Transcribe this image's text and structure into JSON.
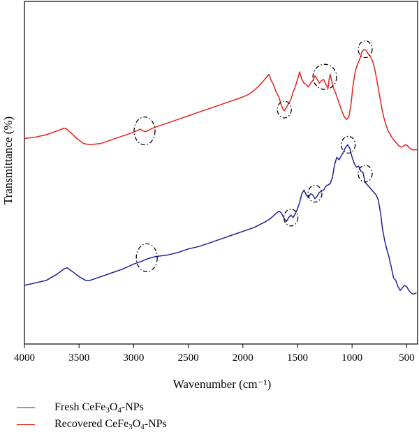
{
  "chart_data": {
    "type": "line",
    "xlabel": "Wavenumber (cm⁻¹)",
    "ylabel": "Transmittance (%)",
    "xlim": [
      4000,
      400
    ],
    "x_reversed": true,
    "ylim": [
      0,
      100
    ],
    "x_ticks": [
      "4000",
      "3500",
      "3000",
      "2500",
      "2000",
      "1500",
      "1000",
      "500"
    ],
    "y_ticks_shown": false,
    "grid": false,
    "legend_position": "bottom-left, below plot",
    "series": [
      {
        "name_parts": {
          "prefix": "Fresh CeFe",
          "sub1": "3",
          "mid": "O",
          "sub2": "4",
          "suffix": "-NPs"
        },
        "color": "#1f1f9e",
        "points": [
          [
            4000,
            10
          ],
          [
            3800,
            12
          ],
          [
            3700,
            14.5
          ],
          [
            3640,
            16.5
          ],
          [
            3610,
            17
          ],
          [
            3560,
            15.5
          ],
          [
            3500,
            13.5
          ],
          [
            3440,
            12
          ],
          [
            3400,
            12
          ],
          [
            3300,
            13.5
          ],
          [
            3200,
            15
          ],
          [
            3100,
            16.5
          ],
          [
            3000,
            18.5
          ],
          [
            2920,
            19.7
          ],
          [
            2880,
            20.5
          ],
          [
            2840,
            21
          ],
          [
            2800,
            21.5
          ],
          [
            2700,
            22
          ],
          [
            2600,
            23
          ],
          [
            2500,
            24.5
          ],
          [
            2400,
            25.5
          ],
          [
            2300,
            27
          ],
          [
            2200,
            28.5
          ],
          [
            2100,
            30
          ],
          [
            2000,
            31.5
          ],
          [
            1900,
            33
          ],
          [
            1800,
            35.2
          ],
          [
            1750,
            36.5
          ],
          [
            1700,
            38.5
          ],
          [
            1670,
            39.5
          ],
          [
            1650,
            39
          ],
          [
            1620,
            36.5
          ],
          [
            1600,
            35.5
          ],
          [
            1580,
            37
          ],
          [
            1560,
            38
          ],
          [
            1540,
            37
          ],
          [
            1520,
            38.5
          ],
          [
            1500,
            40.5
          ],
          [
            1480,
            43
          ],
          [
            1460,
            46.5
          ],
          [
            1440,
            48
          ],
          [
            1420,
            46
          ],
          [
            1400,
            45
          ],
          [
            1380,
            46.5
          ],
          [
            1360,
            46
          ],
          [
            1340,
            44.5
          ],
          [
            1320,
            45.5
          ],
          [
            1300,
            47
          ],
          [
            1280,
            47.5
          ],
          [
            1260,
            48
          ],
          [
            1240,
            49.5
          ],
          [
            1200,
            50.5
          ],
          [
            1180,
            53
          ],
          [
            1160,
            58
          ],
          [
            1140,
            61
          ],
          [
            1120,
            60
          ],
          [
            1100,
            61.5
          ],
          [
            1080,
            63
          ],
          [
            1060,
            65
          ],
          [
            1040,
            66
          ],
          [
            1020,
            64.5
          ],
          [
            1000,
            61
          ],
          [
            980,
            58.5
          ],
          [
            960,
            57
          ],
          [
            940,
            57.5
          ],
          [
            920,
            55.5
          ],
          [
            900,
            55
          ],
          [
            880,
            51
          ],
          [
            860,
            50
          ],
          [
            840,
            49
          ],
          [
            820,
            48
          ],
          [
            800,
            47
          ],
          [
            780,
            46
          ],
          [
            760,
            44
          ],
          [
            740,
            39
          ],
          [
            720,
            32
          ],
          [
            700,
            27.5
          ],
          [
            680,
            24
          ],
          [
            660,
            21
          ],
          [
            640,
            17
          ],
          [
            620,
            13
          ],
          [
            600,
            12
          ],
          [
            580,
            9.5
          ],
          [
            560,
            8
          ],
          [
            540,
            9
          ],
          [
            520,
            10
          ],
          [
            500,
            9.5
          ],
          [
            480,
            8
          ],
          [
            460,
            7
          ],
          [
            440,
            6.5
          ],
          [
            410,
            7
          ]
        ]
      },
      {
        "name_parts": {
          "prefix": "Recovered CeFe",
          "sub1": "3",
          "mid": "O",
          "sub2": "4",
          "suffix": "-NPs"
        },
        "color": "#e8201a",
        "points": [
          [
            4000,
            68.5
          ],
          [
            3900,
            69
          ],
          [
            3800,
            70
          ],
          [
            3700,
            71.5
          ],
          [
            3640,
            72.5
          ],
          [
            3620,
            72.5
          ],
          [
            3580,
            71
          ],
          [
            3520,
            68.5
          ],
          [
            3460,
            66.5
          ],
          [
            3400,
            66
          ],
          [
            3300,
            66.5
          ],
          [
            3200,
            68
          ],
          [
            3100,
            69.5
          ],
          [
            3000,
            71
          ],
          [
            2940,
            72.2
          ],
          [
            2920,
            71.7
          ],
          [
            2900,
            71.2
          ],
          [
            2880,
            71.4
          ],
          [
            2860,
            71.7
          ],
          [
            2840,
            72.3
          ],
          [
            2800,
            73
          ],
          [
            2700,
            74.5
          ],
          [
            2600,
            76
          ],
          [
            2500,
            77.5
          ],
          [
            2400,
            79
          ],
          [
            2300,
            80.5
          ],
          [
            2200,
            82
          ],
          [
            2100,
            83.5
          ],
          [
            2000,
            85
          ],
          [
            1950,
            86
          ],
          [
            1900,
            87.5
          ],
          [
            1850,
            89.5
          ],
          [
            1800,
            92
          ],
          [
            1760,
            94
          ],
          [
            1740,
            91.5
          ],
          [
            1720,
            90
          ],
          [
            1700,
            87.5
          ],
          [
            1690,
            86.5
          ],
          [
            1670,
            85
          ],
          [
            1650,
            82
          ],
          [
            1630,
            80
          ],
          [
            1620,
            79.5
          ],
          [
            1600,
            81
          ],
          [
            1580,
            82.5
          ],
          [
            1560,
            84
          ],
          [
            1540,
            87
          ],
          [
            1520,
            89
          ],
          [
            1500,
            92
          ],
          [
            1480,
            95
          ],
          [
            1460,
            92
          ],
          [
            1440,
            90.5
          ],
          [
            1420,
            90
          ],
          [
            1400,
            89
          ],
          [
            1380,
            90.5
          ],
          [
            1360,
            91.5
          ],
          [
            1340,
            93.5
          ],
          [
            1320,
            92
          ],
          [
            1300,
            90.5
          ],
          [
            1280,
            91.5
          ],
          [
            1260,
            92
          ],
          [
            1240,
            90
          ],
          [
            1220,
            88.5
          ],
          [
            1210,
            92
          ],
          [
            1200,
            94
          ],
          [
            1190,
            92
          ],
          [
            1170,
            88.5
          ],
          [
            1150,
            86.5
          ],
          [
            1130,
            84
          ],
          [
            1110,
            81.5
          ],
          [
            1090,
            79
          ],
          [
            1070,
            77
          ],
          [
            1050,
            76
          ],
          [
            1030,
            77
          ],
          [
            1010,
            82
          ],
          [
            990,
            90
          ],
          [
            970,
            95.5
          ],
          [
            950,
            98
          ],
          [
            930,
            100
          ],
          [
            910,
            103
          ],
          [
            890,
            104
          ],
          [
            870,
            103.5
          ],
          [
            850,
            102
          ],
          [
            830,
            101
          ],
          [
            810,
            99
          ],
          [
            790,
            95.5
          ],
          [
            770,
            91
          ],
          [
            750,
            86
          ],
          [
            730,
            81
          ],
          [
            710,
            77
          ],
          [
            690,
            74
          ],
          [
            670,
            71.5
          ],
          [
            650,
            70
          ],
          [
            630,
            68.5
          ],
          [
            610,
            67.5
          ],
          [
            590,
            66.5
          ],
          [
            570,
            65.5
          ],
          [
            550,
            65
          ],
          [
            530,
            65.5
          ],
          [
            510,
            66
          ],
          [
            490,
            65.5
          ],
          [
            470,
            64.5
          ],
          [
            450,
            64
          ],
          [
            420,
            64
          ],
          [
            405,
            64
          ]
        ]
      }
    ],
    "annotations": [
      {
        "shape": "dash-dot ellipse",
        "series": "Fresh",
        "x": 2880,
        "y": 21
      },
      {
        "shape": "dash-dot ellipse",
        "series": "Fresh",
        "x": 1560,
        "y": 37
      },
      {
        "shape": "dash-dot ellipse",
        "series": "Fresh",
        "x": 1340,
        "y": 46.5
      },
      {
        "shape": "dash-dot ellipse",
        "series": "Fresh",
        "x": 1035,
        "y": 66
      },
      {
        "shape": "dash-dot ellipse",
        "series": "Fresh",
        "x": 880,
        "y": 54.5
      },
      {
        "shape": "dash-dot ellipse",
        "series": "Recovered",
        "x": 2900,
        "y": 71.5
      },
      {
        "shape": "dash-dot ellipse",
        "series": "Recovered",
        "x": 1620,
        "y": 80
      },
      {
        "shape": "dash-dot ellipse",
        "series": "Recovered",
        "x": 1250,
        "y": 93
      },
      {
        "shape": "dash-dot ellipse",
        "series": "Recovered",
        "x": 880,
        "y": 104
      }
    ]
  }
}
